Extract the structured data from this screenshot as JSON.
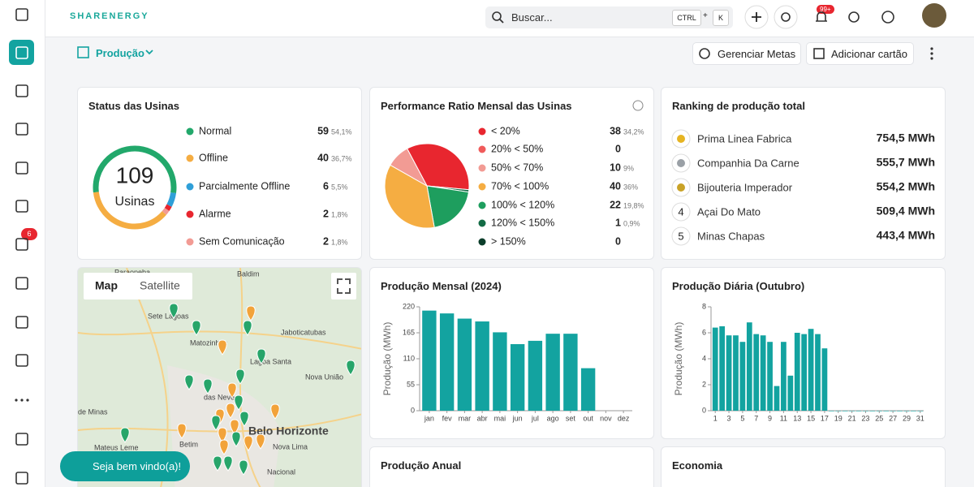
{
  "header": {
    "logo": "SHARENERGY",
    "search_placeholder": "Buscar...",
    "shortcut": [
      "CTRL",
      "+",
      "K"
    ],
    "notification_badge": "99+"
  },
  "sidebar": {
    "badge": "6"
  },
  "toolbar": {
    "page": "Produção",
    "buttons": [
      "Gerenciar Metas",
      "Adicionar cartão"
    ]
  },
  "status_card": {
    "title": "Status das Usinas",
    "total": 109,
    "total_label": "Usinas",
    "chart_data": {
      "type": "donut",
      "categories": [
        "Normal",
        "Offline",
        "Parcialmente Offline",
        "Alarme",
        "Sem Comunicação"
      ],
      "values": [
        59,
        40,
        6,
        2,
        2
      ],
      "shares": [
        "54,1%",
        "36,7%",
        "5,5%",
        "1,8%",
        "1,8%"
      ],
      "colors": [
        "#22a86b",
        "#f5ad42",
        "#2f9fd8",
        "#e8262f",
        "#f29b94"
      ]
    }
  },
  "performance_card": {
    "title": "Performance Ratio Mensal das Usinas",
    "chart_data": {
      "type": "pie",
      "categories": [
        "< 20%",
        "20% < 50%",
        "50% < 70%",
        "70% < 100%",
        "100% < 120%",
        "120% < 150%",
        "> 150%"
      ],
      "values": [
        38,
        0,
        10,
        40,
        22,
        1,
        0
      ],
      "shares": [
        "34,2%",
        null,
        "9%",
        "36%",
        "19,8%",
        "0,9%",
        null
      ],
      "colors": [
        "#e8262f",
        "#f05a5a",
        "#f29b94",
        "#f5ad42",
        "#1e9e5e",
        "#136b45",
        "#0b3d2a"
      ]
    }
  },
  "ranking_card": {
    "title": "Ranking de produção total",
    "rows": [
      {
        "rank": null,
        "name": "Prima Linea Fabrica",
        "value": "754,5 MWh"
      },
      {
        "rank": null,
        "name": "Companhia Da Carne",
        "value": "555,7 MWh"
      },
      {
        "rank": null,
        "name": "Bijouteria Imperador",
        "value": "554,2 MWh"
      },
      {
        "rank": "4",
        "name": "Açai Do Mato",
        "value": "509,4 MWh"
      },
      {
        "rank": "5",
        "name": "Minas Chapas",
        "value": "443,4 MWh"
      }
    ]
  },
  "map_card": {
    "tabs": [
      "Map",
      "Satellite"
    ],
    "places": [
      "Paraopeba",
      "Baldim",
      "Sete Lagoas",
      "Jaboticatubas",
      "Matozinhos",
      "Lagoa Santa",
      "Nova União",
      "das Neves",
      "de Minas",
      "Belo Horizonte",
      "Betim",
      "Mateus Leme",
      "Nova Lima",
      "Nacional"
    ]
  },
  "monthly_card": {
    "title": "Produção Mensal (2024)",
    "chart_data": {
      "type": "bar",
      "y_label": "Produção (MWh)",
      "color": "#13a3a0",
      "categories": [
        "jan",
        "fev",
        "mar",
        "abr",
        "mai",
        "jun",
        "jul",
        "ago",
        "set",
        "out",
        "nov",
        "dez"
      ],
      "values": [
        212,
        206,
        195,
        189,
        166,
        141,
        148,
        163,
        163,
        90,
        null,
        null
      ],
      "ylim": [
        0,
        220
      ],
      "yticks": [
        0,
        55,
        110,
        165,
        220
      ]
    }
  },
  "daily_card": {
    "title": "Produção Diária (Outubro)",
    "chart_data": {
      "type": "bar",
      "y_label": "Produção (MWh)",
      "color": "#13a3a0",
      "categories": [
        1,
        null,
        3,
        null,
        5,
        null,
        7,
        null,
        9,
        null,
        11,
        null,
        13,
        null,
        15,
        null,
        17,
        null,
        19,
        null,
        21,
        null,
        23,
        null,
        25,
        null,
        27,
        null,
        29,
        null,
        31
      ],
      "values": [
        6.4,
        6.5,
        5.8,
        5.8,
        5.3,
        6.8,
        5.9,
        5.8,
        5.3,
        1.9,
        5.3,
        2.7,
        6.0,
        5.9,
        6.3,
        5.9,
        4.8,
        0,
        0,
        0,
        0,
        0,
        0,
        0,
        0,
        0,
        0,
        0,
        0,
        0,
        0
      ],
      "ylim": [
        0,
        8
      ],
      "yticks": [
        0,
        2,
        4,
        6,
        8
      ]
    }
  },
  "annual_card": {
    "title": "Produção Anual"
  },
  "economy_card": {
    "title": "Economia"
  },
  "welcome": "Seja bem vindo(a)!"
}
